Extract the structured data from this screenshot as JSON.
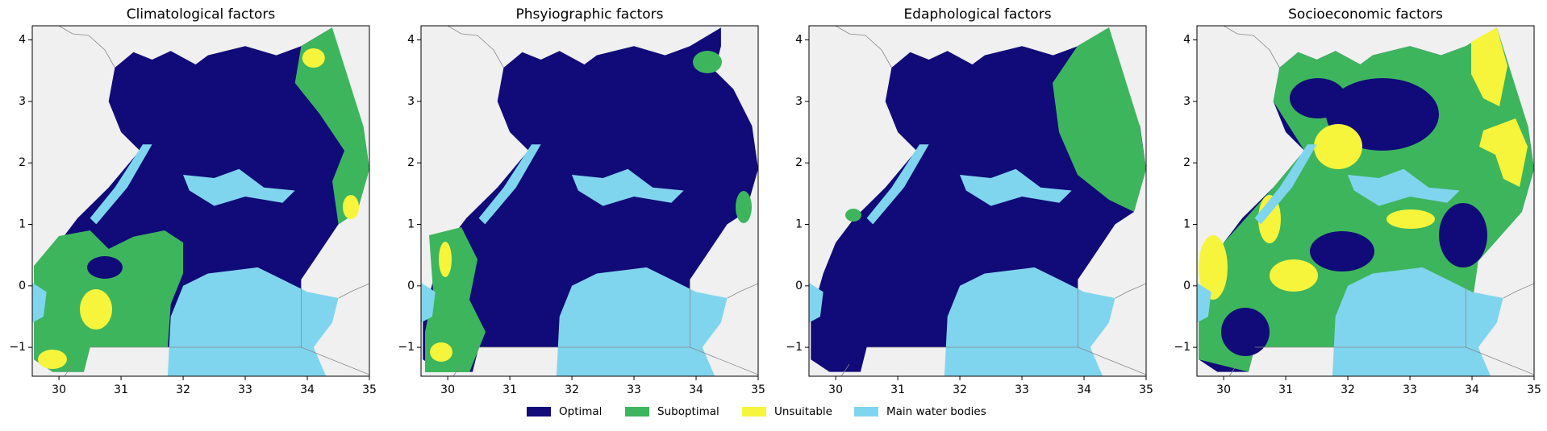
{
  "chart_data": [
    {
      "type": "map",
      "title": "Climatological factors",
      "xlim": [
        29.57,
        35
      ],
      "ylim": [
        -1.47,
        4.23
      ],
      "xticks": [
        30,
        31,
        32,
        33,
        34,
        35
      ],
      "yticks": [
        {
          "value": -1,
          "label": "−1"
        },
        0,
        1,
        2,
        3,
        4
      ]
    },
    {
      "type": "map",
      "title": "Phsyiographic factors",
      "xlim": [
        29.57,
        35
      ],
      "ylim": [
        -1.47,
        4.23
      ],
      "xticks": [
        30,
        31,
        32,
        33,
        34,
        35
      ],
      "yticks": [
        {
          "value": -1,
          "label": "−1"
        },
        0,
        1,
        2,
        3,
        4
      ]
    },
    {
      "type": "map",
      "title": "Edaphological factors",
      "xlim": [
        29.57,
        35
      ],
      "ylim": [
        -1.47,
        4.23
      ],
      "xticks": [
        30,
        31,
        32,
        33,
        34,
        35
      ],
      "yticks": [
        {
          "value": -1,
          "label": "−1"
        },
        0,
        1,
        2,
        3,
        4
      ]
    },
    {
      "type": "map",
      "title": "Socioeconomic factors",
      "xlim": [
        29.57,
        35
      ],
      "ylim": [
        -1.47,
        4.23
      ],
      "xticks": [
        30,
        31,
        32,
        33,
        34,
        35
      ],
      "yticks": [
        {
          "value": -1,
          "label": "−1"
        },
        0,
        1,
        2,
        3,
        4
      ]
    }
  ],
  "legend": [
    {
      "name": "Optimal",
      "color": "#100b78"
    },
    {
      "name": "Suboptimal",
      "color": "#3db55d"
    },
    {
      "name": "Unsuitable",
      "color": "#f6f53b"
    },
    {
      "name": "Main water bodies",
      "color": "#80d5ee"
    }
  ]
}
